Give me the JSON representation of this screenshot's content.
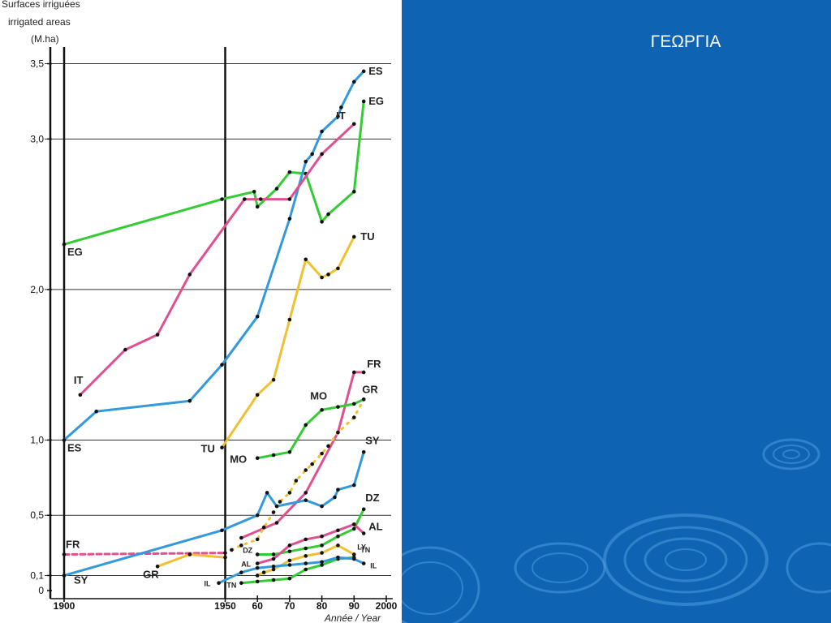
{
  "slide": {
    "title": "ΓΕΩΡΓΙΑ"
  },
  "chart_data": {
    "type": "line",
    "title_lines": [
      "Surfaces irriguées",
      "irrigated areas",
      "(M.ha)"
    ],
    "xlabel": "Année / Year",
    "xlim": [
      1900,
      2000
    ],
    "ylim": [
      0,
      3.6
    ],
    "y_ticks": [
      {
        "v": 0,
        "label": "0"
      },
      {
        "v": 0.1,
        "label": "0,1"
      },
      {
        "v": 0.5,
        "label": "0,5"
      },
      {
        "v": 1.0,
        "label": "1,0"
      },
      {
        "v": 2.0,
        "label": "2,0"
      },
      {
        "v": 3.0,
        "label": "3,0"
      },
      {
        "v": 3.5,
        "label": "3,5"
      }
    ],
    "x_ticks": [
      {
        "v": 1900,
        "label": "1900"
      },
      {
        "v": 1950,
        "label": "1950"
      },
      {
        "v": 1960,
        "label": "60"
      },
      {
        "v": 1970,
        "label": "70"
      },
      {
        "v": 1980,
        "label": "80"
      },
      {
        "v": 1990,
        "label": "90"
      },
      {
        "v": 2000,
        "label": "2000"
      }
    ],
    "grid": true,
    "series": [
      {
        "name": "EG",
        "color": "#33cc33",
        "x": [
          1900,
          1949,
          1959,
          1960,
          1966,
          1970,
          1975,
          1980,
          1982,
          1990,
          1993
        ],
        "y": [
          2.3,
          2.6,
          2.65,
          2.55,
          2.67,
          2.78,
          2.77,
          2.45,
          2.5,
          2.65,
          3.25
        ]
      },
      {
        "name": "ES",
        "color": "#3399dd",
        "x": [
          1900,
          1910,
          1939,
          1949,
          1960,
          1970,
          1975,
          1977,
          1980,
          1985,
          1986,
          1990,
          1993
        ],
        "y": [
          1.0,
          1.19,
          1.26,
          1.5,
          1.82,
          2.47,
          2.85,
          2.9,
          3.05,
          3.15,
          3.21,
          3.38,
          3.45
        ]
      },
      {
        "name": "IT",
        "color": "#e0508f",
        "x": [
          1905,
          1919,
          1929,
          1939,
          1956,
          1961,
          1970,
          1980,
          1990
        ],
        "y": [
          1.3,
          1.6,
          1.7,
          2.1,
          2.6,
          2.6,
          2.6,
          2.9,
          3.1
        ]
      },
      {
        "name": "TU",
        "color": "#f0c030",
        "x": [
          1949,
          1960,
          1965,
          1970,
          1975,
          1980,
          1982,
          1985,
          1990
        ],
        "y": [
          0.95,
          1.3,
          1.4,
          1.8,
          2.2,
          2.08,
          2.1,
          2.14,
          2.35
        ]
      },
      {
        "name": "FR",
        "color": "#e0508f",
        "x": [
          1955,
          1966,
          1975,
          1985,
          1990,
          1993
        ],
        "y": [
          0.35,
          0.45,
          0.65,
          1.05,
          1.45,
          1.45
        ]
      },
      {
        "name": "FR 1900–1950",
        "color": "#e0508f",
        "dashed": true,
        "x": [
          1900,
          1950
        ],
        "y": [
          0.24,
          0.25
        ]
      },
      {
        "name": "GR",
        "color": "#f0c030",
        "dotted": true,
        "x": [
          1952,
          1955,
          1960,
          1962,
          1965,
          1967,
          1970,
          1972,
          1975,
          1977,
          1980,
          1982,
          1985,
          1990,
          1993
        ],
        "y": [
          0.27,
          0.3,
          0.34,
          0.42,
          0.52,
          0.59,
          0.65,
          0.73,
          0.8,
          0.84,
          0.91,
          0.96,
          1.05,
          1.15,
          1.27
        ]
      },
      {
        "name": "GR early",
        "color": "#f0c030",
        "x": [
          1929,
          1939,
          1950
        ],
        "y": [
          0.16,
          0.24,
          0.22
        ]
      },
      {
        "name": "MO",
        "color": "#33cc33",
        "x": [
          1960,
          1965,
          1970,
          1975,
          1980,
          1985,
          1990,
          1993
        ],
        "y": [
          0.88,
          0.9,
          0.92,
          1.1,
          1.2,
          1.22,
          1.24,
          1.27
        ]
      },
      {
        "name": "SY",
        "color": "#3399dd",
        "x": [
          1900,
          1949,
          1960,
          1963,
          1966,
          1975,
          1980,
          1984,
          1985,
          1990,
          1993
        ],
        "y": [
          0.1,
          0.4,
          0.5,
          0.65,
          0.56,
          0.6,
          0.56,
          0.62,
          0.67,
          0.7,
          0.92
        ]
      },
      {
        "name": "DZ",
        "color": "#33cc33",
        "x": [
          1960,
          1965,
          1970,
          1975,
          1980,
          1985,
          1990,
          1993
        ],
        "y": [
          0.24,
          0.24,
          0.26,
          0.28,
          0.3,
          0.36,
          0.41,
          0.54
        ]
      },
      {
        "name": "AL",
        "color": "#e0508f",
        "x": [
          1960,
          1965,
          1970,
          1975,
          1980,
          1985,
          1990,
          1993
        ],
        "y": [
          0.18,
          0.21,
          0.3,
          0.34,
          0.36,
          0.4,
          0.44,
          0.38
        ]
      },
      {
        "name": "LY",
        "color": "#f0c030",
        "x": [
          1960,
          1962,
          1965,
          1970,
          1975,
          1980,
          1985,
          1990
        ],
        "y": [
          0.1,
          0.12,
          0.14,
          0.2,
          0.23,
          0.25,
          0.3,
          0.24
        ]
      },
      {
        "name": "TN",
        "color": "#33cc33",
        "x": [
          1955,
          1960,
          1965,
          1970,
          1975,
          1980,
          1985,
          1990
        ],
        "y": [
          0.05,
          0.06,
          0.07,
          0.08,
          0.14,
          0.17,
          0.21,
          0.22
        ]
      },
      {
        "name": "IL",
        "color": "#3399dd",
        "x": [
          1948,
          1955,
          1960,
          1965,
          1970,
          1975,
          1980,
          1985,
          1990,
          1993
        ],
        "y": [
          0.05,
          0.12,
          0.15,
          0.16,
          0.17,
          0.18,
          0.19,
          0.22,
          0.21,
          0.18
        ]
      }
    ],
    "annotations": [
      {
        "text": "EG",
        "series": "EG",
        "at": "start"
      },
      {
        "text": "EG",
        "series": "EG",
        "at": "end"
      },
      {
        "text": "ES",
        "series": "ES",
        "at": "start"
      },
      {
        "text": "ES",
        "series": "ES",
        "at": "end"
      },
      {
        "text": "IT",
        "series": "IT",
        "at": "start"
      },
      {
        "text": "IT",
        "series": "IT",
        "at": "end"
      },
      {
        "text": "TU",
        "series": "TU",
        "at": "start"
      },
      {
        "text": "TU",
        "series": "TU",
        "at": "end"
      },
      {
        "text": "FR",
        "series": "FR 1900–1950",
        "at": "start"
      },
      {
        "text": "FR",
        "series": "FR",
        "at": "end"
      },
      {
        "text": "GR",
        "series": "GR early",
        "at": "start"
      },
      {
        "text": "GR",
        "series": "GR",
        "at": "end"
      },
      {
        "text": "MO",
        "series": "MO",
        "at": "start"
      },
      {
        "text": "MO",
        "series": "MO",
        "at": "end"
      },
      {
        "text": "SY",
        "series": "SY",
        "at": "start"
      },
      {
        "text": "SY",
        "series": "SY",
        "at": "end"
      },
      {
        "text": "DZ",
        "series": "DZ",
        "at": "start"
      },
      {
        "text": "DZ",
        "series": "DZ",
        "at": "end"
      },
      {
        "text": "AL",
        "series": "AL",
        "at": "start"
      },
      {
        "text": "AL",
        "series": "AL",
        "at": "end"
      },
      {
        "text": "LY",
        "series": "LY",
        "at": "end"
      },
      {
        "text": "TN",
        "series": "TN",
        "at": "start"
      },
      {
        "text": "TN",
        "series": "TN",
        "at": "end"
      },
      {
        "text": "IL",
        "series": "IL",
        "at": "start"
      },
      {
        "text": "IL",
        "series": "IL",
        "at": "end"
      }
    ]
  }
}
